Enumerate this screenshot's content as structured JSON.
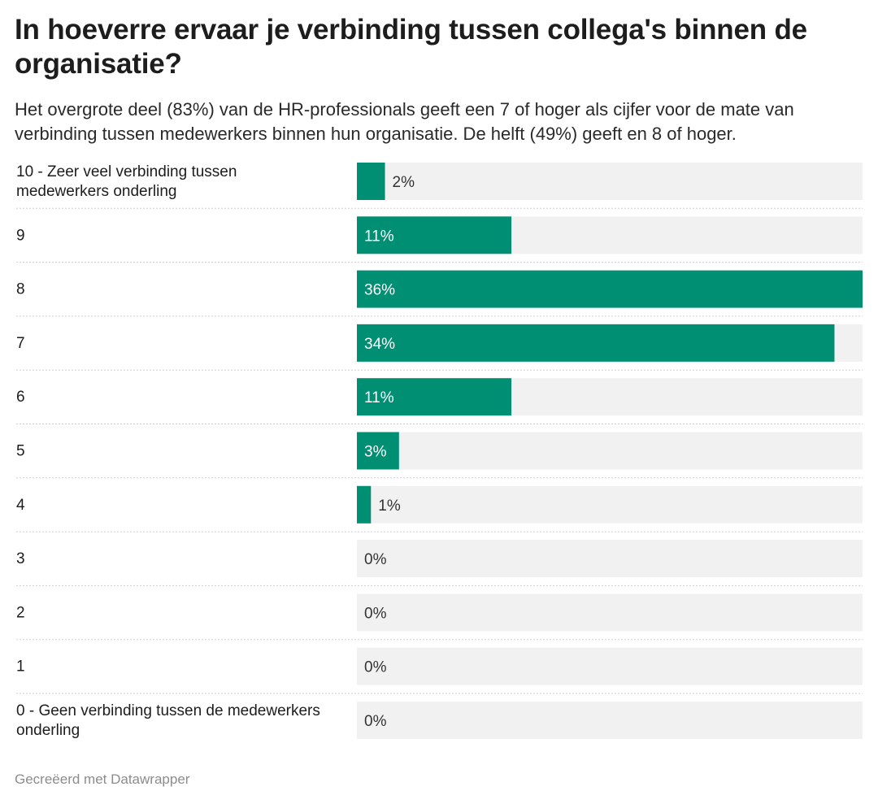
{
  "title": "In hoeverre ervaar je verbinding tussen collega's binnen de organisatie?",
  "subtitle": "Het overgrote deel (83%) van de HR-professionals geeft een 7 of hoger als cijfer voor de mate van verbinding tussen medewerkers binnen hun organisatie. De helft (49%) geeft en 8 of hoger.",
  "footer": "Gecreëerd met Datawrapper",
  "colors": {
    "bar": "#008f73",
    "track": "#f1f1f1",
    "label_inside": "#ffffff",
    "label_outside": "#333333",
    "divider": "#cfcfcf"
  },
  "chart_data": {
    "type": "bar",
    "orientation": "horizontal",
    "categories": [
      "10 - Zeer veel verbinding tussen medewerkers onderling",
      "9",
      "8",
      "7",
      "6",
      "5",
      "4",
      "3",
      "2",
      "1",
      "0 - Geen verbinding tussen de medewerkers onderling"
    ],
    "category_lines": [
      [
        "10 - Zeer veel verbinding tussen",
        "medewerkers onderling"
      ],
      [
        "9"
      ],
      [
        "8"
      ],
      [
        "7"
      ],
      [
        "6"
      ],
      [
        "5"
      ],
      [
        "4"
      ],
      [
        "3"
      ],
      [
        "2"
      ],
      [
        "1"
      ],
      [
        "0 - Geen verbinding tussen de medewerkers",
        "onderling"
      ]
    ],
    "values": [
      2,
      11,
      36,
      34,
      11,
      3,
      1,
      0,
      0,
      0,
      0
    ],
    "value_labels": [
      "2%",
      "11%",
      "36%",
      "34%",
      "11%",
      "3%",
      "1%",
      "0%",
      "0%",
      "0%",
      "0%"
    ],
    "unit": "%",
    "xlim": [
      0,
      36
    ]
  }
}
